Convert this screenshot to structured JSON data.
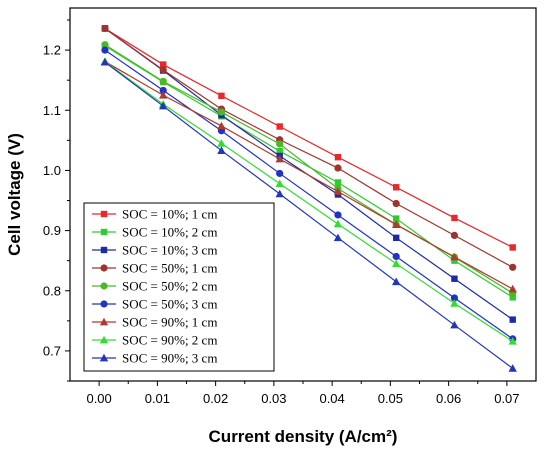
{
  "chart_data": {
    "type": "line",
    "xlabel": "Current density  (A/cm²)",
    "ylabel": "Cell voltage  (V)",
    "xlim": [
      -0.005,
      0.075
    ],
    "ylim": [
      0.65,
      1.27
    ],
    "xticks": [
      "0.00",
      "0.01",
      "0.02",
      "0.03",
      "0.04",
      "0.05",
      "0.06",
      "0.07"
    ],
    "yticks": [
      "0.7",
      "0.8",
      "0.9",
      "1.0",
      "1.1",
      "1.2"
    ],
    "legend_position": "bottom-left",
    "x": [
      0.001,
      0.011,
      0.021,
      0.031,
      0.041,
      0.051,
      0.061,
      0.071
    ],
    "series": [
      {
        "name": "SOC = 10%;   1 cm",
        "color": "#e8282b",
        "marker": "square",
        "values": [
          1.236,
          1.176,
          1.124,
          1.073,
          1.022,
          0.972,
          0.921,
          0.872
        ]
      },
      {
        "name": "SOC = 10%;   2 cm",
        "color": "#2ecc2e",
        "marker": "square",
        "values": [
          1.207,
          1.147,
          1.09,
          1.032,
          0.98,
          0.92,
          0.85,
          0.789
        ]
      },
      {
        "name": "SOC = 10%;   3 cm",
        "color": "#1c2aa8",
        "marker": "square",
        "values": [
          1.236,
          1.166,
          1.092,
          1.024,
          0.96,
          0.888,
          0.82,
          0.752
        ]
      },
      {
        "name": "SOC = 50%;   1 cm",
        "color": "#a0342c",
        "marker": "circle",
        "values": [
          1.236,
          1.167,
          1.102,
          1.051,
          1.004,
          0.945,
          0.892,
          0.839
        ]
      },
      {
        "name": "SOC = 50%;   2 cm",
        "color": "#4bb82a",
        "marker": "circle",
        "values": [
          1.209,
          1.148,
          1.097,
          1.044,
          0.97,
          0.91,
          0.856,
          0.796
        ]
      },
      {
        "name": "SOC = 50%;   3 cm",
        "color": "#2233c4",
        "marker": "circle",
        "values": [
          1.2,
          1.133,
          1.066,
          0.995,
          0.926,
          0.857,
          0.788,
          0.72
        ]
      },
      {
        "name": "SOC = 90%;   1 cm",
        "color": "#b03a2e",
        "marker": "triangle",
        "values": [
          1.181,
          1.125,
          1.074,
          1.019,
          0.965,
          0.91,
          0.856,
          0.803
        ]
      },
      {
        "name": "SOC = 90%;   2 cm",
        "color": "#33dd33",
        "marker": "triangle",
        "values": [
          1.181,
          1.11,
          1.045,
          0.978,
          0.911,
          0.845,
          0.779,
          0.716
        ]
      },
      {
        "name": "SOC = 90%;   3 cm",
        "color": "#2236b8",
        "marker": "triangle",
        "values": [
          1.18,
          1.107,
          1.033,
          0.961,
          0.888,
          0.815,
          0.743,
          0.671
        ]
      }
    ]
  }
}
